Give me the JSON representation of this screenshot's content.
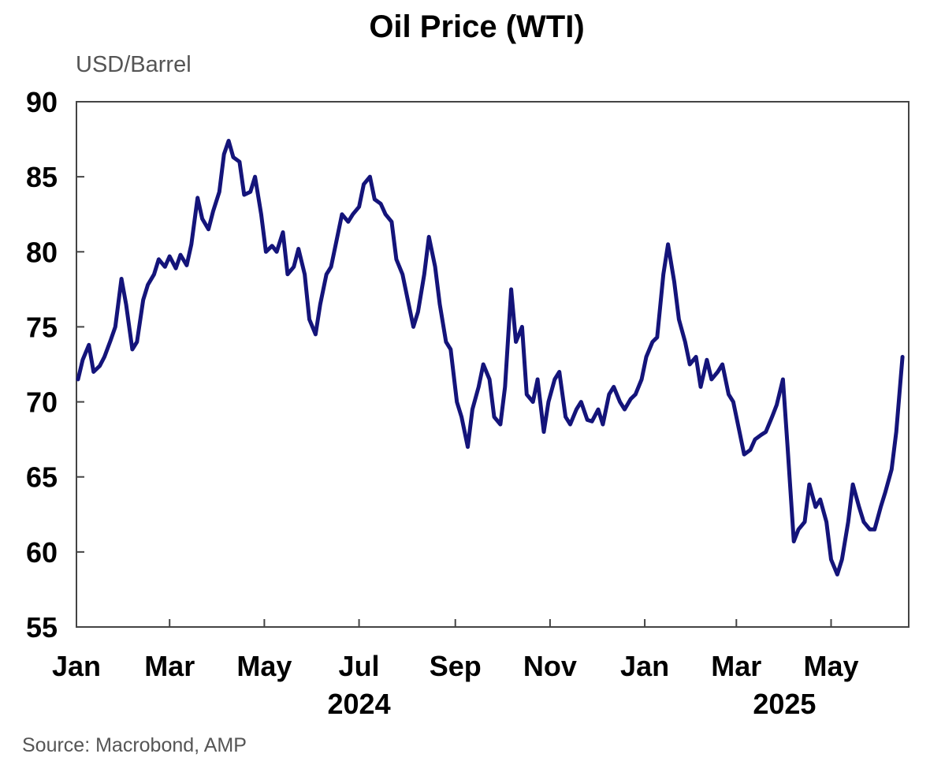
{
  "chart_data": {
    "type": "line",
    "title": "Oil Price (WTI)",
    "ylabel": "USD/Barrel",
    "source": "Source: Macrobond, AMP",
    "ylim": [
      55,
      90
    ],
    "yticks": [
      55,
      60,
      65,
      70,
      75,
      80,
      85,
      90
    ],
    "xlim": [
      "2024-01-01",
      "2025-06-20"
    ],
    "x_ticks": [
      {
        "date": "2024-01-01",
        "label": "Jan"
      },
      {
        "date": "2024-03-01",
        "label": "Mar"
      },
      {
        "date": "2024-05-01",
        "label": "May"
      },
      {
        "date": "2024-07-01",
        "label": "Jul"
      },
      {
        "date": "2024-09-01",
        "label": "Sep"
      },
      {
        "date": "2024-11-01",
        "label": "Nov"
      },
      {
        "date": "2025-01-01",
        "label": "Jan"
      },
      {
        "date": "2025-03-01",
        "label": "Mar"
      },
      {
        "date": "2025-05-01",
        "label": "May"
      }
    ],
    "year_labels": [
      {
        "date": "2024-07-01",
        "label": "2024"
      },
      {
        "date": "2025-04-01",
        "label": "2025"
      }
    ],
    "grid": false,
    "line_color": "#14147a",
    "series": [
      {
        "values": [
          [
            "2024-01-02",
            71.5
          ],
          [
            "2024-01-05",
            72.8
          ],
          [
            "2024-01-09",
            73.8
          ],
          [
            "2024-01-12",
            72.0
          ],
          [
            "2024-01-16",
            72.4
          ],
          [
            "2024-01-19",
            73.0
          ],
          [
            "2024-01-23",
            74.1
          ],
          [
            "2024-01-26",
            75.0
          ],
          [
            "2024-01-30",
            78.2
          ],
          [
            "2024-02-02",
            76.5
          ],
          [
            "2024-02-06",
            73.5
          ],
          [
            "2024-02-09",
            74.0
          ],
          [
            "2024-02-13",
            76.8
          ],
          [
            "2024-02-16",
            77.8
          ],
          [
            "2024-02-20",
            78.5
          ],
          [
            "2024-02-23",
            79.5
          ],
          [
            "2024-02-27",
            79.0
          ],
          [
            "2024-03-01",
            79.7
          ],
          [
            "2024-03-05",
            78.9
          ],
          [
            "2024-03-08",
            79.8
          ],
          [
            "2024-03-12",
            79.1
          ],
          [
            "2024-03-15",
            80.5
          ],
          [
            "2024-03-19",
            83.6
          ],
          [
            "2024-03-22",
            82.2
          ],
          [
            "2024-03-26",
            81.5
          ],
          [
            "2024-03-29",
            82.7
          ],
          [
            "2024-04-02",
            84.0
          ],
          [
            "2024-04-05",
            86.5
          ],
          [
            "2024-04-08",
            87.4
          ],
          [
            "2024-04-11",
            86.3
          ],
          [
            "2024-04-15",
            86.0
          ],
          [
            "2024-04-18",
            83.8
          ],
          [
            "2024-04-22",
            84.0
          ],
          [
            "2024-04-25",
            85.0
          ],
          [
            "2024-04-29",
            82.5
          ],
          [
            "2024-05-02",
            80.0
          ],
          [
            "2024-05-06",
            80.4
          ],
          [
            "2024-05-09",
            80.0
          ],
          [
            "2024-05-13",
            81.3
          ],
          [
            "2024-05-16",
            78.5
          ],
          [
            "2024-05-20",
            79.0
          ],
          [
            "2024-05-23",
            80.2
          ],
          [
            "2024-05-27",
            78.5
          ],
          [
            "2024-05-30",
            75.5
          ],
          [
            "2024-06-03",
            74.5
          ],
          [
            "2024-06-06",
            76.5
          ],
          [
            "2024-06-10",
            78.5
          ],
          [
            "2024-06-13",
            79.0
          ],
          [
            "2024-06-17",
            81.0
          ],
          [
            "2024-06-20",
            82.5
          ],
          [
            "2024-06-24",
            82.0
          ],
          [
            "2024-06-27",
            82.5
          ],
          [
            "2024-07-01",
            83.0
          ],
          [
            "2024-07-04",
            84.5
          ],
          [
            "2024-07-08",
            85.0
          ],
          [
            "2024-07-11",
            83.5
          ],
          [
            "2024-07-15",
            83.2
          ],
          [
            "2024-07-18",
            82.5
          ],
          [
            "2024-07-22",
            82.0
          ],
          [
            "2024-07-25",
            79.5
          ],
          [
            "2024-07-29",
            78.5
          ],
          [
            "2024-08-01",
            77.0
          ],
          [
            "2024-08-05",
            75.0
          ],
          [
            "2024-08-08",
            76.0
          ],
          [
            "2024-08-12",
            78.5
          ],
          [
            "2024-08-15",
            81.0
          ],
          [
            "2024-08-19",
            79.0
          ],
          [
            "2024-08-22",
            76.5
          ],
          [
            "2024-08-26",
            74.0
          ],
          [
            "2024-08-29",
            73.5
          ],
          [
            "2024-09-02",
            70.0
          ],
          [
            "2024-09-05",
            69.0
          ],
          [
            "2024-09-09",
            67.0
          ],
          [
            "2024-09-12",
            69.5
          ],
          [
            "2024-09-16",
            71.0
          ],
          [
            "2024-09-19",
            72.5
          ],
          [
            "2024-09-23",
            71.5
          ],
          [
            "2024-09-26",
            69.0
          ],
          [
            "2024-09-30",
            68.5
          ],
          [
            "2024-10-03",
            71.0
          ],
          [
            "2024-10-07",
            77.5
          ],
          [
            "2024-10-10",
            74.0
          ],
          [
            "2024-10-14",
            75.0
          ],
          [
            "2024-10-17",
            70.5
          ],
          [
            "2024-10-21",
            70.0
          ],
          [
            "2024-10-24",
            71.5
          ],
          [
            "2024-10-28",
            68.0
          ],
          [
            "2024-10-31",
            70.0
          ],
          [
            "2024-11-04",
            71.5
          ],
          [
            "2024-11-07",
            72.0
          ],
          [
            "2024-11-11",
            69.0
          ],
          [
            "2024-11-14",
            68.5
          ],
          [
            "2024-11-18",
            69.5
          ],
          [
            "2024-11-21",
            70.0
          ],
          [
            "2024-11-25",
            68.8
          ],
          [
            "2024-11-28",
            68.7
          ],
          [
            "2024-12-02",
            69.5
          ],
          [
            "2024-12-05",
            68.5
          ],
          [
            "2024-12-09",
            70.5
          ],
          [
            "2024-12-12",
            71.0
          ],
          [
            "2024-12-16",
            70.0
          ],
          [
            "2024-12-19",
            69.5
          ],
          [
            "2024-12-23",
            70.2
          ],
          [
            "2024-12-26",
            70.5
          ],
          [
            "2024-12-30",
            71.5
          ],
          [
            "2025-01-02",
            73.0
          ],
          [
            "2025-01-06",
            74.0
          ],
          [
            "2025-01-09",
            74.3
          ],
          [
            "2025-01-13",
            78.5
          ],
          [
            "2025-01-16",
            80.5
          ],
          [
            "2025-01-20",
            78.0
          ],
          [
            "2025-01-23",
            75.5
          ],
          [
            "2025-01-27",
            74.0
          ],
          [
            "2025-01-30",
            72.5
          ],
          [
            "2025-02-03",
            73.0
          ],
          [
            "2025-02-06",
            71.0
          ],
          [
            "2025-02-10",
            72.8
          ],
          [
            "2025-02-13",
            71.5
          ],
          [
            "2025-02-17",
            72.0
          ],
          [
            "2025-02-20",
            72.5
          ],
          [
            "2025-02-24",
            70.5
          ],
          [
            "2025-02-27",
            70.0
          ],
          [
            "2025-03-03",
            68.0
          ],
          [
            "2025-03-06",
            66.5
          ],
          [
            "2025-03-10",
            66.8
          ],
          [
            "2025-03-13",
            67.5
          ],
          [
            "2025-03-17",
            67.8
          ],
          [
            "2025-03-20",
            68.0
          ],
          [
            "2025-03-24",
            69.0
          ],
          [
            "2025-03-27",
            69.8
          ],
          [
            "2025-03-31",
            71.5
          ],
          [
            "2025-04-03",
            67.0
          ],
          [
            "2025-04-07",
            60.7
          ],
          [
            "2025-04-10",
            61.5
          ],
          [
            "2025-04-14",
            62.0
          ],
          [
            "2025-04-17",
            64.5
          ],
          [
            "2025-04-21",
            63.0
          ],
          [
            "2025-04-24",
            63.5
          ],
          [
            "2025-04-28",
            62.0
          ],
          [
            "2025-05-01",
            59.5
          ],
          [
            "2025-05-05",
            58.5
          ],
          [
            "2025-05-08",
            59.5
          ],
          [
            "2025-05-12",
            62.0
          ],
          [
            "2025-05-15",
            64.5
          ],
          [
            "2025-05-19",
            63.0
          ],
          [
            "2025-05-22",
            62.0
          ],
          [
            "2025-05-26",
            61.5
          ],
          [
            "2025-05-29",
            61.5
          ],
          [
            "2025-06-02",
            63.0
          ],
          [
            "2025-06-05",
            64.0
          ],
          [
            "2025-06-09",
            65.5
          ],
          [
            "2025-06-12",
            68.0
          ],
          [
            "2025-06-16",
            73.0
          ]
        ]
      }
    ]
  }
}
